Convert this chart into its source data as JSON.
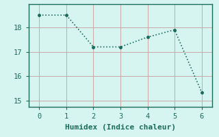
{
  "x": [
    0,
    1,
    2,
    3,
    4,
    5,
    6
  ],
  "y": [
    18.5,
    18.5,
    17.2,
    17.2,
    17.6,
    17.9,
    15.35
  ],
  "line_color": "#1a6b5a",
  "marker": "o",
  "marker_size": 2.5,
  "line_width": 1.2,
  "linestyle": ":",
  "xlabel": "Humidex (Indice chaleur)",
  "xlim": [
    -0.4,
    6.4
  ],
  "ylim": [
    14.75,
    18.95
  ],
  "yticks": [
    15,
    16,
    17,
    18
  ],
  "xticks": [
    0,
    1,
    2,
    3,
    4,
    5,
    6
  ],
  "background_color": "#d6f5f0",
  "grid_color": "#c8a8a8",
  "axis_color": "#1a6b5a",
  "font_color": "#1a6b5a",
  "font_family": "monospace",
  "xlabel_fontsize": 8,
  "tick_fontsize": 7.5
}
